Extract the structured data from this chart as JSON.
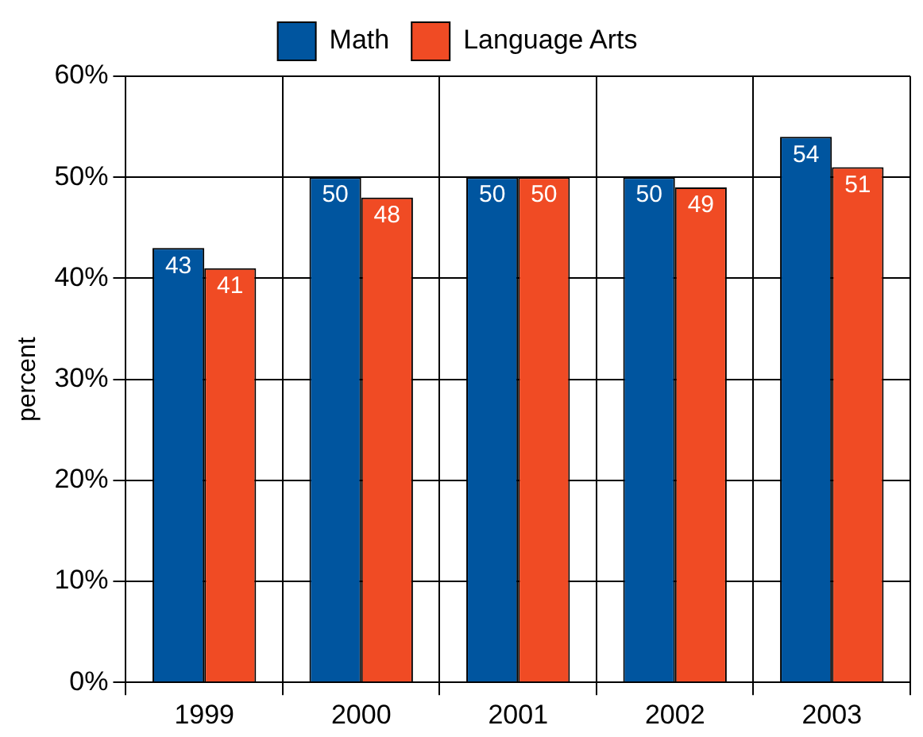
{
  "chart_data": {
    "type": "bar",
    "ylabel": "percent",
    "categories": [
      "1999",
      "2000",
      "2001",
      "2002",
      "2003"
    ],
    "series": [
      {
        "name": "Math",
        "color": "#00559f",
        "values": [
          43,
          50,
          50,
          50,
          54
        ]
      },
      {
        "name": "Language Arts",
        "color": "#f04b24",
        "values": [
          41,
          48,
          50,
          49,
          51
        ]
      }
    ],
    "ylim": [
      0,
      60
    ],
    "yticks": [
      {
        "value": 0,
        "label": "0%"
      },
      {
        "value": 10,
        "label": "10%"
      },
      {
        "value": 20,
        "label": "20%"
      },
      {
        "value": 30,
        "label": "30%"
      },
      {
        "value": 40,
        "label": "40%"
      },
      {
        "value": 50,
        "label": "50%"
      },
      {
        "value": 60,
        "label": "60%"
      }
    ],
    "grid": true,
    "legend": "top",
    "data_labels": true
  }
}
